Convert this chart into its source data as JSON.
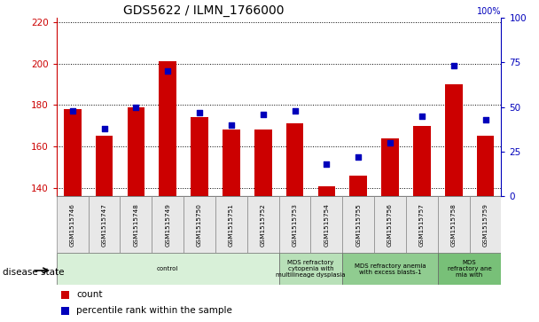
{
  "title": "GDS5622 / ILMN_1766000",
  "samples": [
    "GSM1515746",
    "GSM1515747",
    "GSM1515748",
    "GSM1515749",
    "GSM1515750",
    "GSM1515751",
    "GSM1515752",
    "GSM1515753",
    "GSM1515754",
    "GSM1515755",
    "GSM1515756",
    "GSM1515757",
    "GSM1515758",
    "GSM1515759"
  ],
  "counts": [
    178,
    165,
    179,
    201,
    174,
    168,
    168,
    171,
    141,
    146,
    164,
    170,
    190,
    165
  ],
  "percentile_ranks": [
    48,
    38,
    50,
    70,
    47,
    40,
    46,
    48,
    18,
    22,
    30,
    45,
    73,
    43
  ],
  "ylim_left": [
    136,
    222
  ],
  "ylim_right": [
    0,
    100
  ],
  "yticks_left": [
    140,
    160,
    180,
    200,
    220
  ],
  "yticks_right": [
    0,
    25,
    50,
    75,
    100
  ],
  "bar_color": "#cc0000",
  "dot_color": "#0000bb",
  "bar_bottom": 136,
  "disease_groups": [
    {
      "label": "control",
      "start": 0,
      "end": 7,
      "color": "#d8f0d8"
    },
    {
      "label": "MDS refractory\ncytopenia with\nmultilineage dysplasia",
      "start": 7,
      "end": 9,
      "color": "#b8e0b8"
    },
    {
      "label": "MDS refractory anemia\nwith excess blasts-1",
      "start": 9,
      "end": 12,
      "color": "#90cc90"
    },
    {
      "label": "MDS\nrefractory ane\nmia with",
      "start": 12,
      "end": 14,
      "color": "#78c078"
    }
  ],
  "legend_count_label": "count",
  "legend_pct_label": "percentile rank within the sample",
  "disease_state_label": "disease state",
  "cell_bg_color": "#e8e8e8",
  "left_axis_color": "#cc0000",
  "right_axis_color": "#0000bb",
  "fig_width": 6.08,
  "fig_height": 3.63
}
